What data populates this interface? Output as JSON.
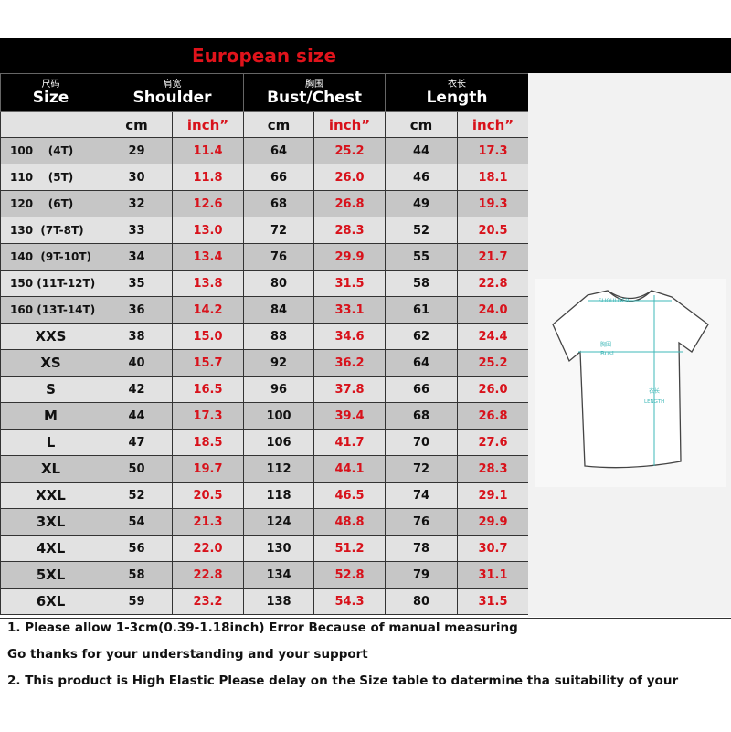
{
  "title": "European size",
  "headers": [
    {
      "cn": "尺码",
      "en": "Size"
    },
    {
      "cn": "肩宽",
      "en": "Shoulder"
    },
    {
      "cn": "胸围",
      "en": "Bust/Chest"
    },
    {
      "cn": "衣长",
      "en": "Length"
    }
  ],
  "units": {
    "cm": "cm",
    "inch": "inch”"
  },
  "rows": [
    [
      "100    (4T)",
      "29",
      "11.4",
      "64",
      "25.2",
      "44",
      "17.3"
    ],
    [
      "110    (5T)",
      "30",
      "11.8",
      "66",
      "26.0",
      "46",
      "18.1"
    ],
    [
      "120    (6T)",
      "32",
      "12.6",
      "68",
      "26.8",
      "49",
      "19.3"
    ],
    [
      "130  (7T-8T)",
      "33",
      "13.0",
      "72",
      "28.3",
      "52",
      "20.5"
    ],
    [
      "140  (9T-10T)",
      "34",
      "13.4",
      "76",
      "29.9",
      "55",
      "21.7"
    ],
    [
      "150 (11T-12T)",
      "35",
      "13.8",
      "80",
      "31.5",
      "58",
      "22.8"
    ],
    [
      "160 (13T-14T)",
      "36",
      "14.2",
      "84",
      "33.1",
      "61",
      "24.0"
    ],
    [
      "XXS",
      "38",
      "15.0",
      "88",
      "34.6",
      "62",
      "24.4"
    ],
    [
      "XS",
      "40",
      "15.7",
      "92",
      "36.2",
      "64",
      "25.2"
    ],
    [
      "S",
      "42",
      "16.5",
      "96",
      "37.8",
      "66",
      "26.0"
    ],
    [
      "M",
      "44",
      "17.3",
      "100",
      "39.4",
      "68",
      "26.8"
    ],
    [
      "L",
      "47",
      "18.5",
      "106",
      "41.7",
      "70",
      "27.6"
    ],
    [
      "XL",
      "50",
      "19.7",
      "112",
      "44.1",
      "72",
      "28.3"
    ],
    [
      "XXL",
      "52",
      "20.5",
      "118",
      "46.5",
      "74",
      "29.1"
    ],
    [
      "3XL",
      "54",
      "21.3",
      "124",
      "48.8",
      "76",
      "29.9"
    ],
    [
      "4XL",
      "56",
      "22.0",
      "130",
      "51.2",
      "78",
      "30.7"
    ],
    [
      "5XL",
      "58",
      "22.8",
      "134",
      "52.8",
      "79",
      "31.1"
    ],
    [
      "6XL",
      "59",
      "23.2",
      "138",
      "54.3",
      "80",
      "31.5"
    ]
  ],
  "diagram": {
    "shoulder": "SHOULDER",
    "bust_cn": "胸围",
    "bust": "Bust",
    "length_cn": "衣长",
    "length": "LENGTH",
    "line_color": "#3fb8b8"
  },
  "notes": [
    "1. Please allow 1-3cm(0.39-1.18inch) Error Because of manual measuring",
    "Go thanks for your understanding and your support",
    "2. This product is High Elastic  Please delay on the Size table to datermine tha suitability of your"
  ],
  "colors": {
    "title": "#e0131b",
    "inch": "#d8121b",
    "header_bg": "#000000",
    "row_dark": "#c6c6c6",
    "row_light": "#e2e2e2"
  }
}
